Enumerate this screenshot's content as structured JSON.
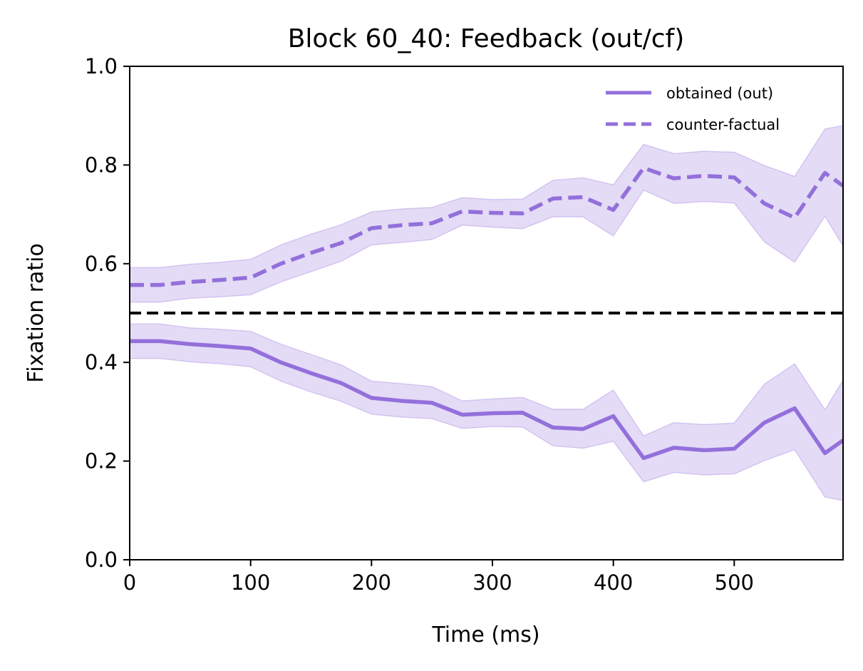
{
  "chart_data": {
    "type": "line",
    "title": "Block 60_40: Feedback (out/cf)",
    "xlabel": "Time (ms)",
    "ylabel": "Fixation ratio",
    "xlim": [
      0,
      590
    ],
    "ylim": [
      0.0,
      1.0
    ],
    "xticks": [
      0,
      100,
      200,
      300,
      400,
      500
    ],
    "xtick_labels": [
      "0",
      "100",
      "200",
      "300",
      "400",
      "500"
    ],
    "yticks": [
      0.0,
      0.2,
      0.4,
      0.6,
      0.8,
      1.0
    ],
    "ytick_labels": [
      "0.0",
      "0.2",
      "0.4",
      "0.6",
      "0.8",
      "1.0"
    ],
    "grid": false,
    "legend_position": "top-right",
    "reference_line": {
      "y": 0.5,
      "style": "dashed",
      "color": "#000000"
    },
    "x": [
      0,
      25,
      50,
      75,
      100,
      125,
      150,
      175,
      200,
      225,
      250,
      275,
      300,
      325,
      350,
      375,
      400,
      425,
      450,
      475,
      500,
      525,
      550,
      575,
      590
    ],
    "series": [
      {
        "name": "obtained (out)",
        "style": "solid",
        "color": "#9370DB",
        "values": [
          0.443,
          0.443,
          0.437,
          0.433,
          0.428,
          0.4,
          0.378,
          0.358,
          0.328,
          0.322,
          0.318,
          0.294,
          0.297,
          0.298,
          0.268,
          0.265,
          0.291,
          0.206,
          0.227,
          0.222,
          0.225,
          0.278,
          0.307,
          0.216,
          0.242
        ],
        "lower": [
          0.408,
          0.408,
          0.401,
          0.397,
          0.391,
          0.362,
          0.34,
          0.321,
          0.295,
          0.289,
          0.286,
          0.266,
          0.27,
          0.269,
          0.231,
          0.226,
          0.24,
          0.158,
          0.177,
          0.172,
          0.174,
          0.201,
          0.223,
          0.127,
          0.12
        ],
        "upper": [
          0.478,
          0.478,
          0.47,
          0.467,
          0.463,
          0.437,
          0.416,
          0.395,
          0.362,
          0.357,
          0.351,
          0.322,
          0.326,
          0.329,
          0.305,
          0.305,
          0.344,
          0.251,
          0.278,
          0.274,
          0.277,
          0.356,
          0.397,
          0.304,
          0.364
        ]
      },
      {
        "name": "counter-factual",
        "style": "dashed",
        "color": "#9370DB",
        "values": [
          0.557,
          0.557,
          0.563,
          0.567,
          0.572,
          0.6,
          0.622,
          0.642,
          0.672,
          0.678,
          0.682,
          0.706,
          0.703,
          0.702,
          0.732,
          0.735,
          0.709,
          0.794,
          0.773,
          0.778,
          0.775,
          0.722,
          0.693,
          0.784,
          0.758
        ],
        "lower": [
          0.522,
          0.522,
          0.53,
          0.533,
          0.537,
          0.563,
          0.584,
          0.605,
          0.638,
          0.643,
          0.649,
          0.678,
          0.674,
          0.671,
          0.695,
          0.695,
          0.656,
          0.749,
          0.722,
          0.726,
          0.723,
          0.644,
          0.603,
          0.696,
          0.636
        ],
        "upper": [
          0.592,
          0.592,
          0.599,
          0.603,
          0.609,
          0.638,
          0.66,
          0.679,
          0.705,
          0.711,
          0.714,
          0.734,
          0.73,
          0.731,
          0.769,
          0.774,
          0.76,
          0.842,
          0.823,
          0.828,
          0.826,
          0.799,
          0.777,
          0.873,
          0.88
        ]
      }
    ]
  }
}
